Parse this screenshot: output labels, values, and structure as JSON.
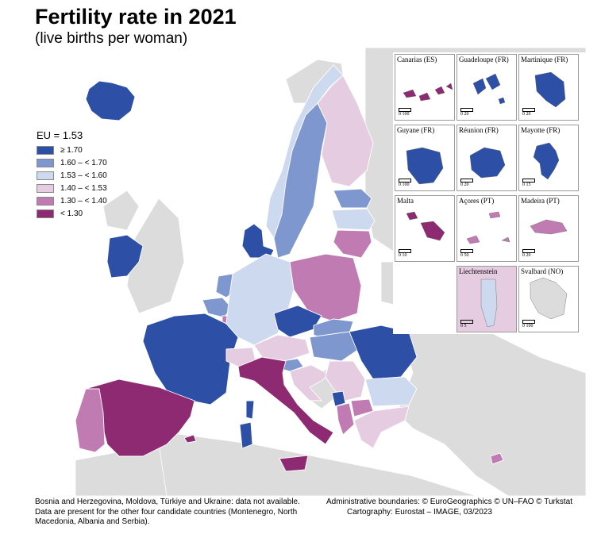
{
  "title": "Fertility rate in 2021",
  "subtitle": "(live births per woman)",
  "legend": {
    "eu_label": "EU = 1.53",
    "classes": [
      {
        "label": "≥ 1.70",
        "color": "#2d50a6"
      },
      {
        "label": "1.60 – < 1.70",
        "color": "#7e97cf"
      },
      {
        "label": "1.53 – < 1.60",
        "color": "#cdd9ef"
      },
      {
        "label": "1.40 – < 1.53",
        "color": "#e6cce0"
      },
      {
        "label": "1.30 – < 1.40",
        "color": "#c07bb2"
      },
      {
        "label": "< 1.30",
        "color": "#8e2a72"
      }
    ]
  },
  "colors": {
    "no_data": "#dcdcdc",
    "sea": "#ffffff",
    "border": "#ffffff",
    "frame": "#9a9a9a"
  },
  "insets": [
    {
      "name": "Canarias (ES)",
      "class": 5,
      "scale": "0 100"
    },
    {
      "name": "Guadeloupe (FR)",
      "class": 0,
      "scale": "0 20"
    },
    {
      "name": "Martinique (FR)",
      "class": 0,
      "scale": "0 20"
    },
    {
      "name": "Guyane (FR)",
      "class": 0,
      "scale": "0 100"
    },
    {
      "name": "Réunion (FR)",
      "class": 0,
      "scale": "0 20"
    },
    {
      "name": "Mayotte (FR)",
      "class": 0,
      "scale": "0 15"
    },
    {
      "name": "Malta",
      "class": 5,
      "scale": "0 10"
    },
    {
      "name": "Açores (PT)",
      "class": 4,
      "scale": "0 50"
    },
    {
      "name": "Madeira (PT)",
      "class": 4,
      "scale": "0 20"
    },
    {
      "name": "Liechtenstein",
      "class": 3,
      "scale": "0 5"
    },
    {
      "name": "Svalbard (NO)",
      "class": -1,
      "scale": "0 100"
    }
  ],
  "regions": [
    {
      "name": "iceland",
      "class": 0
    },
    {
      "name": "ireland",
      "class": 0
    },
    {
      "name": "norway",
      "class": 2
    },
    {
      "name": "sweden",
      "class": 1
    },
    {
      "name": "finland",
      "class": 3
    },
    {
      "name": "estonia",
      "class": 1
    },
    {
      "name": "latvia",
      "class": 2
    },
    {
      "name": "lithuania",
      "class": 4
    },
    {
      "name": "denmark",
      "class": 0
    },
    {
      "name": "netherlands",
      "class": 1
    },
    {
      "name": "belgium",
      "class": 1
    },
    {
      "name": "luxembourg",
      "class": 4
    },
    {
      "name": "france",
      "class": 0
    },
    {
      "name": "germany",
      "class": 2
    },
    {
      "name": "poland",
      "class": 4
    },
    {
      "name": "czechia",
      "class": 0
    },
    {
      "name": "slovakia",
      "class": 1
    },
    {
      "name": "austria",
      "class": 3
    },
    {
      "name": "switzerland",
      "class": 3
    },
    {
      "name": "hungary",
      "class": 1
    },
    {
      "name": "slovenia",
      "class": 1
    },
    {
      "name": "croatia",
      "class": 3
    },
    {
      "name": "serbia",
      "class": 3
    },
    {
      "name": "montenegro",
      "class": 0
    },
    {
      "name": "albania",
      "class": 4
    },
    {
      "name": "north-macedonia",
      "class": 4
    },
    {
      "name": "romania",
      "class": 0
    },
    {
      "name": "bulgaria",
      "class": 2
    },
    {
      "name": "greece",
      "class": 3
    },
    {
      "name": "cyprus",
      "class": 4
    },
    {
      "name": "italy",
      "class": 5
    },
    {
      "name": "sardinia",
      "class": 0
    },
    {
      "name": "sicily",
      "class": 5
    },
    {
      "name": "corsica",
      "class": 0
    },
    {
      "name": "spain",
      "class": 5
    },
    {
      "name": "portugal",
      "class": 4
    },
    {
      "name": "balearic",
      "class": 5
    }
  ],
  "footer": {
    "left_1": "Bosnia and Herzegovina, Moldova, Türkiye and Ukraine: data not available.",
    "left_2": "Data are present for the other four candidate countries (Montenegro, North",
    "left_3": "Macedonia, Albania and Serbia).",
    "right_1": "Administrative boundaries: © EuroGeographics © UN–FAO © Turkstat",
    "right_2": "Cartography: Eurostat – IMAGE, 03/2023"
  }
}
